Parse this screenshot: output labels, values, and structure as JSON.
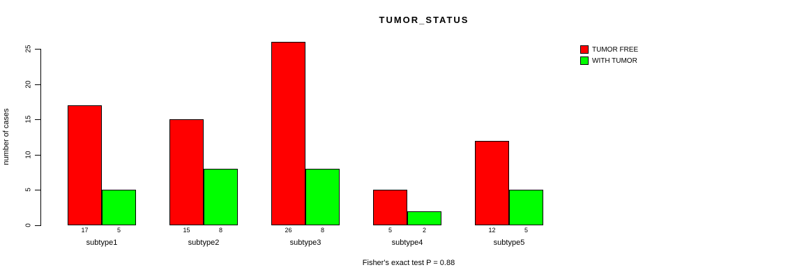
{
  "chart_data": {
    "type": "bar",
    "title": "TUMOR_STATUS",
    "ylabel": "number of cases",
    "xlabel": "",
    "categories": [
      "subtype1",
      "subtype2",
      "subtype3",
      "subtype4",
      "subtype5"
    ],
    "series": [
      {
        "name": "TUMOR FREE",
        "color": "#FF0000",
        "values": [
          17,
          15,
          26,
          5,
          12
        ]
      },
      {
        "name": "WITH TUMOR",
        "color": "#00FF00",
        "values": [
          5,
          8,
          8,
          2,
          5
        ]
      }
    ],
    "yticks": [
      0,
      5,
      10,
      15,
      20,
      25
    ],
    "ylim": [
      0,
      25
    ],
    "grid": false,
    "legend_position": "top-right",
    "bar_value_labels": true,
    "caption": "Fisher's exact test P = 0.88"
  },
  "colors": {
    "background": "#FFFFFF",
    "axis": "#000000",
    "text": "#000000",
    "tumor_free": "#FF0000",
    "with_tumor": "#00FF00"
  }
}
